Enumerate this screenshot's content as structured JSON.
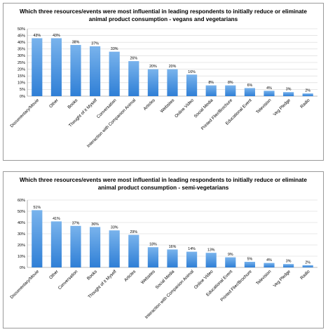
{
  "colors": {
    "bar_top": "#79b3ec",
    "bar_bottom": "#2f7fd6",
    "grid": "#d6d6d6",
    "axis": "#7f7f7f"
  },
  "chart_data": [
    {
      "type": "bar",
      "title": "Which three resources/events were most influential in leading respondents to initially reduce or eliminate animal product consumption - vegans and vegetarians",
      "categories": [
        "Documentary/Movie",
        "Other",
        "Books",
        "Thought of it Myself",
        "Conversation",
        "Interaction with Companion Animal",
        "Articles",
        "Websites",
        "Online Video",
        "Social Media",
        "Printed Flier/Brochure",
        "Educational Event",
        "Television",
        "Veg Pledge",
        "Radio"
      ],
      "values": [
        43,
        43,
        38,
        37,
        33,
        26,
        20,
        20,
        16,
        8,
        8,
        6,
        4,
        3,
        2
      ],
      "data_labels": [
        "43%",
        "43%",
        "38%",
        "37%",
        "33%",
        "26%",
        "20%",
        "20%",
        "16%",
        "8%",
        "8%",
        "6%",
        "4%",
        "3%",
        "2%"
      ],
      "y_ticks": [
        "0%",
        "5%",
        "10%",
        "15%",
        "20%",
        "25%",
        "30%",
        "35%",
        "40%",
        "45%",
        "50%"
      ],
      "ylim": [
        0,
        50
      ],
      "grid": true
    },
    {
      "type": "bar",
      "title": "Which three resources/events were most influential in leading respondents to initially reduce or eliminate animal product consumption - semi-vegetarians",
      "categories": [
        "Documentary/Movie",
        "Other",
        "Conversation",
        "Books",
        "Thought of it Myself",
        "Articles",
        "Websites",
        "Social Media",
        "Interaction with Companion Animal",
        "Online Video",
        "Educational Event",
        "Printed Flier/Brochure",
        "Television",
        "Veg Pledge",
        "Radio"
      ],
      "values": [
        51,
        41,
        37,
        36,
        33,
        29,
        18,
        16,
        14,
        13,
        9,
        5,
        4,
        3,
        2
      ],
      "data_labels": [
        "51%",
        "41%",
        "37%",
        "36%",
        "33%",
        "29%",
        "18%",
        "16%",
        "14%",
        "13%",
        "9%",
        "5%",
        "4%",
        "3%",
        "2%"
      ],
      "y_ticks": [
        "0%",
        "10%",
        "20%",
        "30%",
        "40%",
        "50%",
        "60%"
      ],
      "ylim": [
        0,
        60
      ],
      "grid": true
    }
  ]
}
